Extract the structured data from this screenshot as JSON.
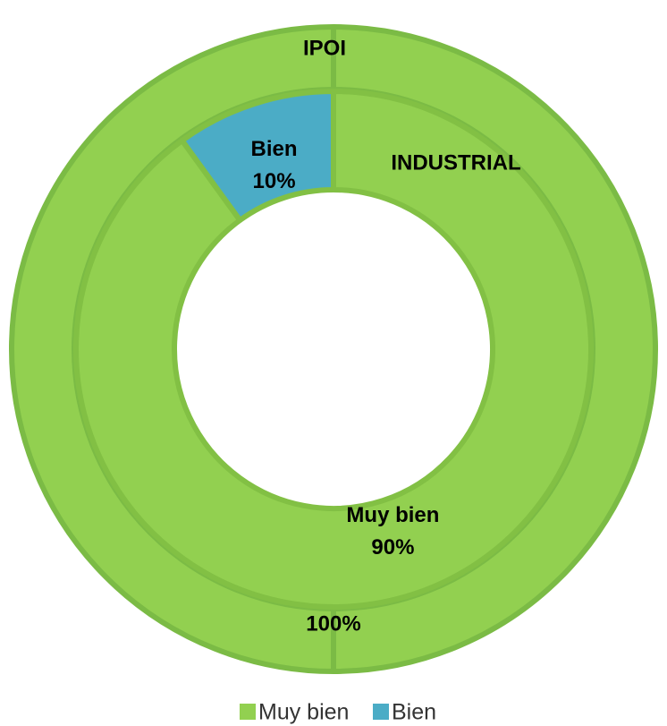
{
  "chart_data": {
    "type": "donut",
    "categories": [
      "Muy bien",
      "Bien"
    ],
    "colors": [
      "#92d050",
      "#4bacc6"
    ],
    "rings": [
      {
        "name": "IPOI",
        "values": [
          100
        ],
        "value_labels": [
          "100%"
        ],
        "show_category_labels": false
      },
      {
        "name": "INDUSTRIAL",
        "values": [
          90,
          10
        ],
        "value_labels": [
          "90%",
          "10%"
        ],
        "show_category_labels": true
      }
    ],
    "legend": "bottom"
  }
}
